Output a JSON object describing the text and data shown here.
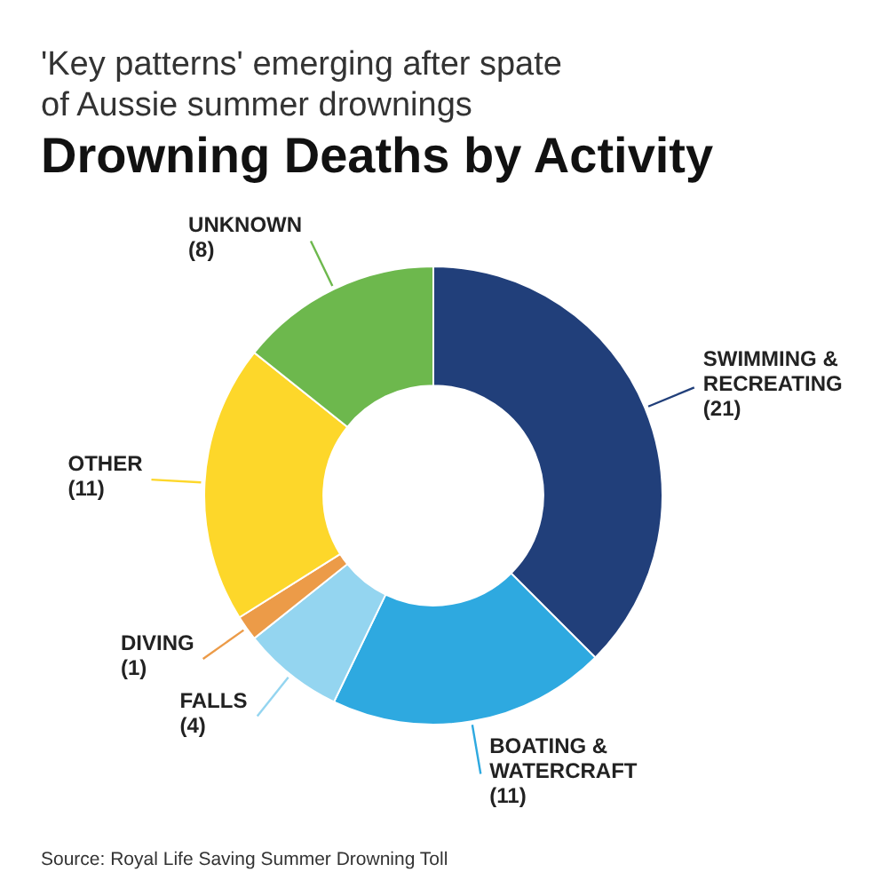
{
  "chart_data": {
    "type": "donut",
    "subtitle": "'Key patterns' emerging after spate of Aussie summer drownings",
    "title": "Drowning Deaths by Activity",
    "categories": [
      "SWIMMING & RECREATING",
      "BOATING & WATERCRAFT",
      "FALLS",
      "DIVING",
      "OTHER",
      "UNKNOWN"
    ],
    "values": [
      21,
      11,
      4,
      1,
      11,
      8
    ],
    "value_labels": [
      "(21)",
      "(11)",
      "(4)",
      "(1)",
      "(11)",
      "(8)"
    ],
    "colors": [
      "#213f7a",
      "#2ea9e0",
      "#94d5f0",
      "#ec9b48",
      "#fdd72a",
      "#6db84d"
    ],
    "annotations": [
      "Source: Royal Life Saving Summer Drowning Toll"
    ]
  }
}
